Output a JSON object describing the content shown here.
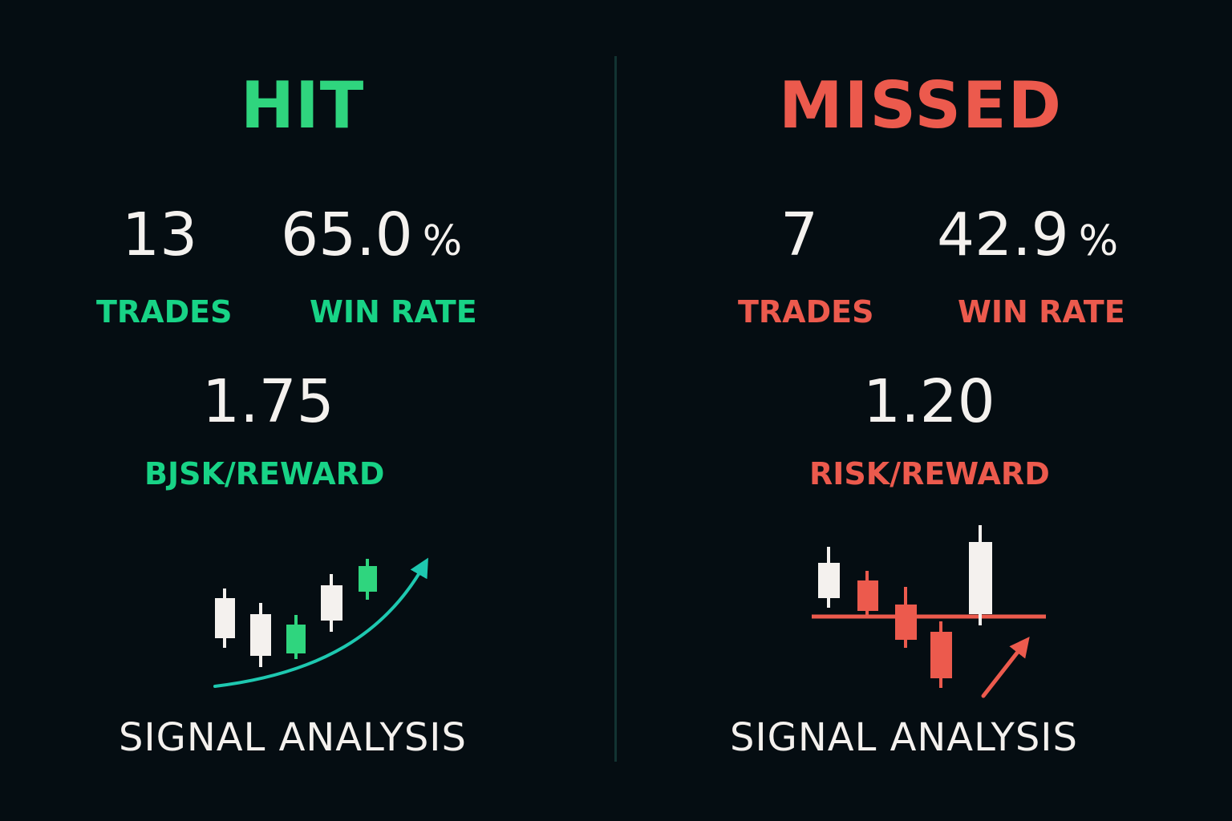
{
  "colors": {
    "background": "#050d12",
    "hit_green": "#2fd57e",
    "label_green": "#18d386",
    "missed_red": "#ec5a4d",
    "value_white": "#f4f1ee",
    "arrow_teal": "#1ec8b0",
    "divider": "#123332"
  },
  "hit": {
    "title": "HIT",
    "trades_value": "13",
    "trades_label": "TRADES",
    "win_rate_value": "65.0",
    "win_rate_unit": "%",
    "win_rate_label": "WIN RATE",
    "risk_reward_value": "1.75",
    "risk_reward_label": "BJSK/REWARD",
    "footer": "SIGNAL ANALYSIS",
    "chart_icon": "uptrend-candlestick-icon"
  },
  "missed": {
    "title": "MISSED",
    "trades_value": "7",
    "trades_label": "TRADES",
    "win_rate_value": "42.9",
    "win_rate_unit": "%",
    "win_rate_label": "WIN RATE",
    "risk_reward_value": "1.20",
    "risk_reward_label": "RISK/REWARD",
    "footer": "SIGNAL ANALYSIS",
    "chart_icon": "downtrend-candlestick-icon"
  }
}
